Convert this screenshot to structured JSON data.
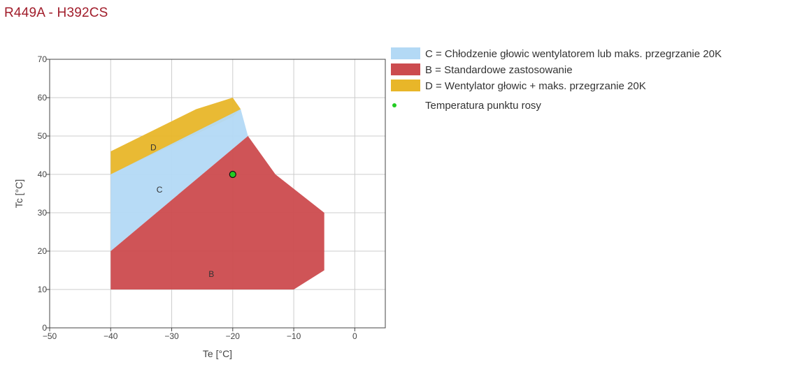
{
  "header": {
    "title": "R449A - H392CS"
  },
  "chart_data": {
    "type": "area",
    "xlabel": "Te [°C]",
    "ylabel": "Tc [°C]",
    "xlim": [
      -50,
      5
    ],
    "ylim": [
      0,
      70
    ],
    "x_ticks": [
      -50,
      -40,
      -30,
      -20,
      -10,
      0
    ],
    "y_ticks": [
      0,
      10,
      20,
      30,
      40,
      50,
      60,
      70
    ],
    "grid": true,
    "legend_position": "right",
    "regions": [
      {
        "name": "D = Wentylator głowic + maks. przegrzanie 20K",
        "label": "D",
        "color": "#e8b629",
        "label_pos": [
          -33,
          47
        ],
        "points": [
          [
            -40,
            40
          ],
          [
            -40,
            46
          ],
          [
            -26,
            57
          ],
          [
            -20,
            60
          ],
          [
            -18.7,
            57
          ],
          [
            -20,
            55
          ]
        ]
      },
      {
        "name": "C = Chłodzenie głowic wentylatorem lub maks. przegrzanie 20K",
        "label": "C",
        "color": "#b3d9f5",
        "label_pos": [
          -32,
          36
        ],
        "points": [
          [
            -40,
            20
          ],
          [
            -40,
            40
          ],
          [
            -18.7,
            57
          ],
          [
            -17.5,
            50
          ]
        ]
      },
      {
        "name": "B = Standardowe zastosowanie",
        "label": "B",
        "color": "#cc4b4e",
        "label_pos": [
          -23.5,
          14
        ],
        "points": [
          [
            -40,
            10
          ],
          [
            -40,
            20
          ],
          [
            -17.5,
            50
          ],
          [
            -13,
            40
          ],
          [
            -5,
            30
          ],
          [
            -5,
            15
          ],
          [
            -10,
            10
          ]
        ]
      }
    ],
    "series": [
      {
        "name": "Temperatura punktu rosy",
        "type": "scatter",
        "color": "#22cc22",
        "x": [
          -20
        ],
        "y": [
          40
        ]
      }
    ]
  }
}
